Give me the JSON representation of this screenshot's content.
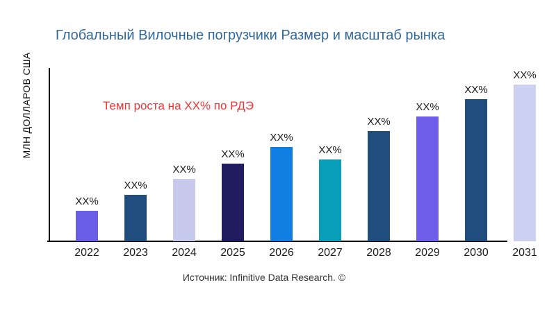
{
  "page": {
    "title": "Глобальный Вилочные погрузчики Размер и масштаб рынка",
    "title_color": "#31689b",
    "annotation": "Темп роста на XX% по РДЭ",
    "annotation_color": "#e8383b",
    "y_axis_label": "МЛН ДОЛЛАРОВ США",
    "source": "Источник: Infinitive Data Research. ©"
  },
  "chart_data": {
    "type": "bar",
    "title": "Глобальный Вилочные погрузчики Размер и масштаб рынка",
    "ylabel": "МЛН ДОЛЛАРОВ США",
    "xlabel": "",
    "categories": [
      "2022",
      "2023",
      "2024",
      "2025",
      "2026",
      "2027",
      "2028",
      "2029",
      "2030",
      "2031"
    ],
    "bar_value_labels": [
      "XX%",
      "XX%",
      "XX%",
      "XX%",
      "XX%",
      "XX%",
      "XX%",
      "XX%",
      "XX%",
      "XX%"
    ],
    "relative_values": [
      19.5,
      29.5,
      40,
      49.5,
      60,
      52,
      70.5,
      79.5,
      90.5,
      100
    ],
    "bar_colors": [
      "#6a5de8",
      "#1f4e7e",
      "#c7c9ed",
      "#211c5f",
      "#117ee3",
      "#099fb8",
      "#1f4e7e",
      "#6e5eea",
      "#1f4e7e",
      "#ccd0f1"
    ],
    "annotation": "Темп роста на XX% по РДЭ",
    "source": "Источник: Infinitive Data Research. ©",
    "grid": false,
    "legend": false,
    "y_axis_ticks": [],
    "notes": "No numeric axis values shown; all bar data labels are XX% placeholders. Values are relative bar heights (max = 100 for 2031). Bars rise monotonically 2022-2026, dip at 2027, then rise through 2031."
  }
}
